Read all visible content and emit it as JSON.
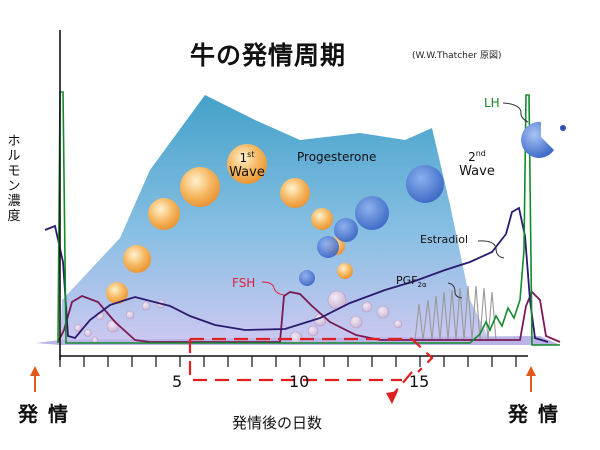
{
  "title": "牛の発情周期",
  "source": "(W.W.Thatcher 原図)",
  "y_label": "ホルモン濃度",
  "x_label": "発情後の日数",
  "estrus_left": "発情",
  "estrus_right": "発情",
  "x_ticks": [
    {
      "day": 5,
      "label": "5"
    },
    {
      "day": 10,
      "label": "10"
    },
    {
      "day": 15,
      "label": "15"
    }
  ],
  "labels": {
    "progesterone": "Progesterone",
    "first_wave_num": "1",
    "first_wave_sup": "st",
    "first_wave_word": "Wave",
    "second_wave_num": "2",
    "second_wave_sup": "nd",
    "second_wave_word": "Wave",
    "fsh": "FSH",
    "lh": "LH",
    "estradiol": "Estradiol",
    "pgf": "PGF",
    "pgf_sub": "2α"
  },
  "colors": {
    "progesterone_area": "#4aa3c8",
    "follicle": "#f0a040",
    "second_wave_follicle": "#3a63c4",
    "lh_line": "#138a2c",
    "estradiol_line": "#2a1b6e",
    "fsh_line": "#7a1a55",
    "fsh_label": "#e0203a",
    "pgf_line": "#888888",
    "estrus_arrow": "#e05a1a",
    "dashed_bracket": "#e02020"
  }
}
